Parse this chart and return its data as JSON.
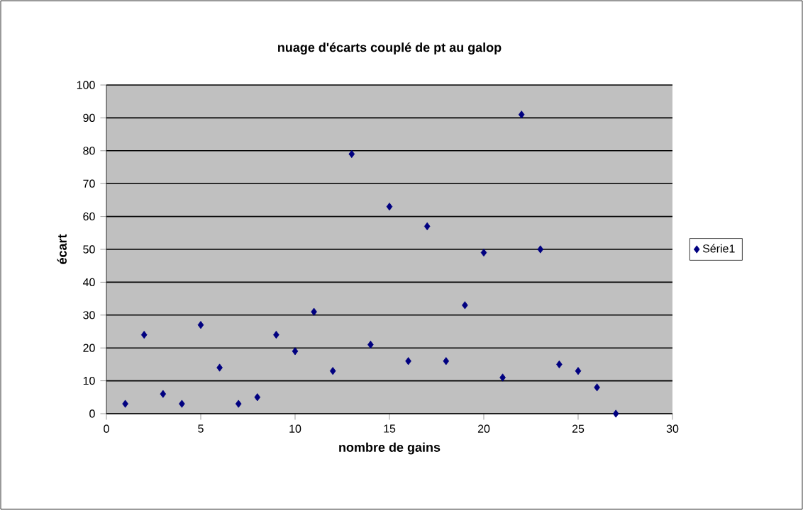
{
  "chart_data": {
    "type": "scatter",
    "title": "nuage d'écarts couplé de pt au galop",
    "xlabel": "nombre de gains",
    "ylabel": "écart",
    "series": [
      {
        "name": "Série1",
        "color": "#000080",
        "x": [
          1,
          2,
          3,
          4,
          5,
          6,
          7,
          8,
          9,
          10,
          11,
          12,
          13,
          14,
          15,
          16,
          17,
          18,
          19,
          20,
          21,
          22,
          23,
          24,
          25,
          26,
          27
        ],
        "values": [
          3,
          24,
          6,
          3,
          27,
          14,
          3,
          5,
          24,
          19,
          31,
          13,
          79,
          21,
          63,
          16,
          57,
          16,
          33,
          49,
          11,
          91,
          50,
          15,
          13,
          8,
          0
        ]
      }
    ],
    "xlim": [
      0,
      30
    ],
    "xticks": [
      0,
      5,
      10,
      15,
      20,
      25,
      30
    ],
    "ylim": [
      0,
      100
    ],
    "yticks": [
      0,
      10,
      20,
      30,
      40,
      50,
      60,
      70,
      80,
      90,
      100
    ],
    "grid": "y",
    "legend": "right",
    "marker": "diamond"
  }
}
